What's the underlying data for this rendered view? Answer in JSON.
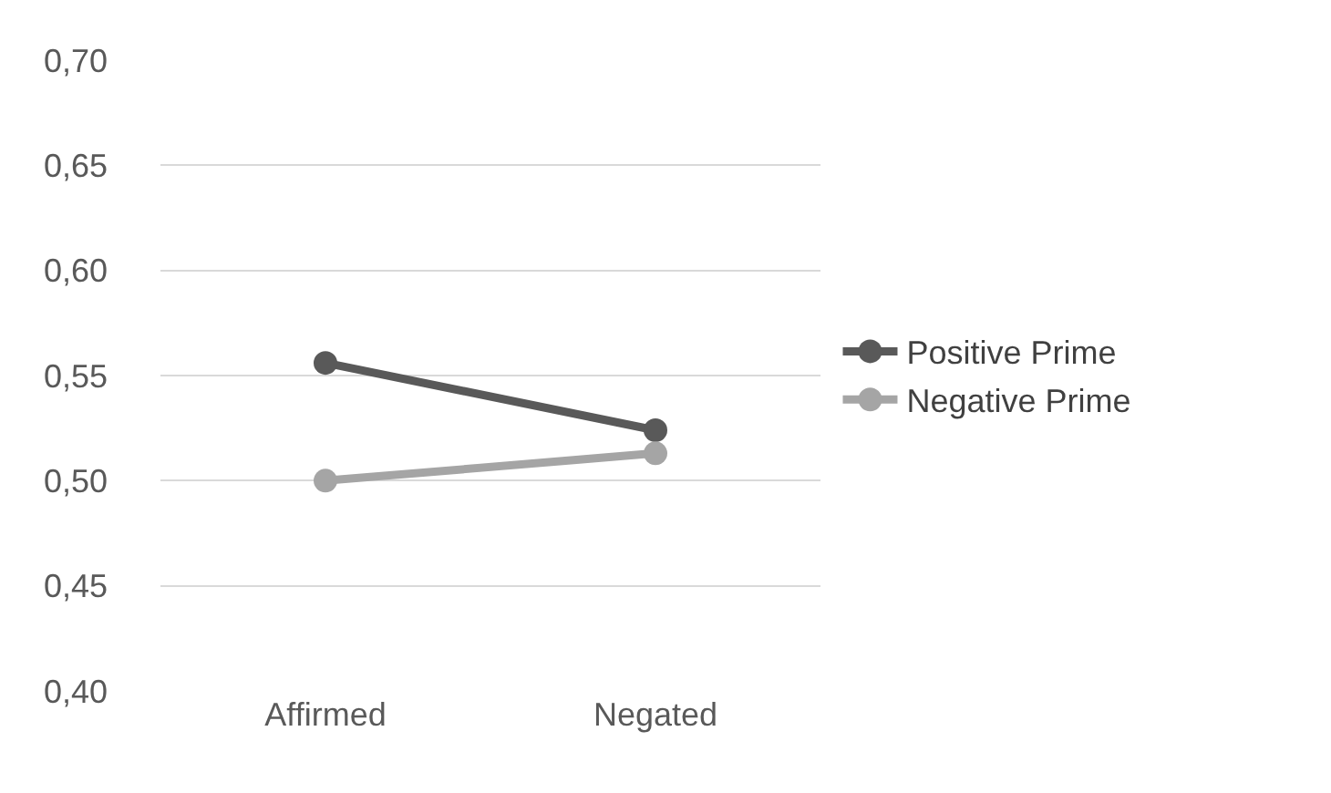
{
  "chart_data": {
    "type": "line",
    "categories": [
      "Affirmed",
      "Negated"
    ],
    "series": [
      {
        "name": "Positive Prime",
        "color": "#595959",
        "values": [
          0.556,
          0.524
        ]
      },
      {
        "name": "Negative Prime",
        "color": "#a5a5a5",
        "values": [
          0.5,
          0.513
        ]
      }
    ],
    "ylim": [
      0.4,
      0.7
    ],
    "yticks": [
      {
        "value": 0.4,
        "label": "0,40"
      },
      {
        "value": 0.45,
        "label": "0,45"
      },
      {
        "value": 0.5,
        "label": "0,50"
      },
      {
        "value": 0.55,
        "label": "0,55"
      },
      {
        "value": 0.6,
        "label": "0,60"
      },
      {
        "value": 0.65,
        "label": "0,65"
      },
      {
        "value": 0.7,
        "label": "0,70"
      }
    ],
    "grid": "y",
    "legend": "right",
    "marker": "circle",
    "line_style": "solid"
  }
}
